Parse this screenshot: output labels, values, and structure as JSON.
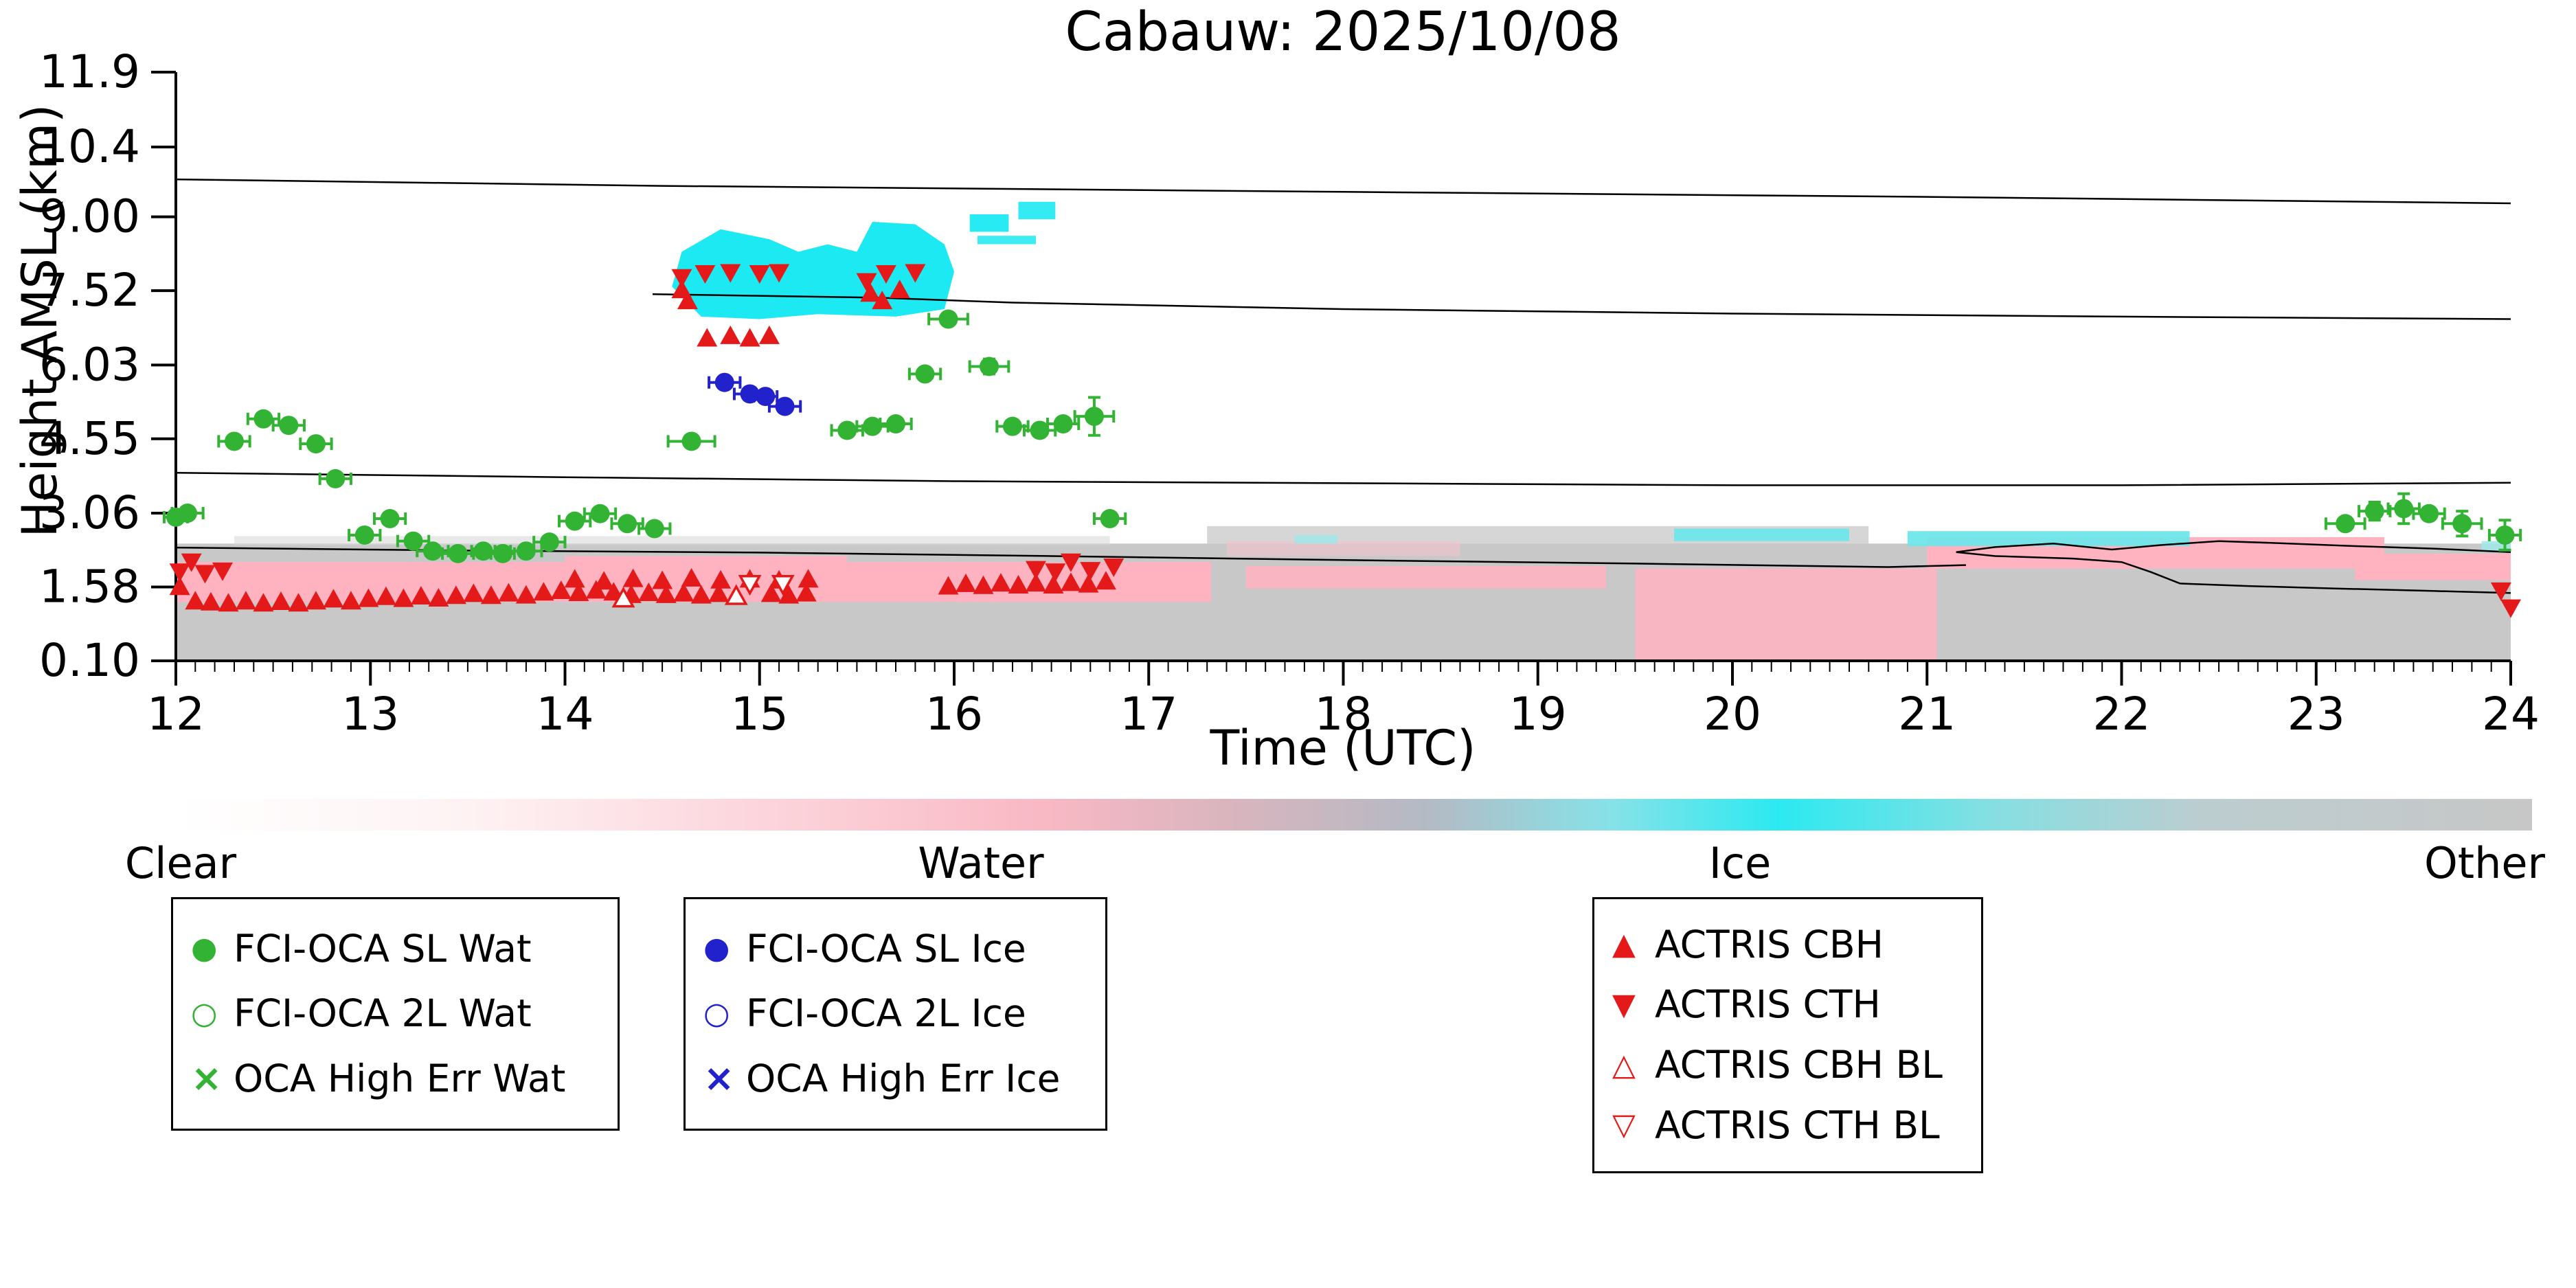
{
  "header": {
    "title": "Cabauw: 2025/10/08"
  },
  "colors": {
    "water_green": "#33b333",
    "ice_blue": "#2222cc",
    "actris_red": "#e41a1a",
    "bg_gray": "#c8c8c8",
    "bg_pink": "#ffb3c1",
    "bg_cyan": "#1ce9f2"
  },
  "colorbar": {
    "stops": [
      "#ffffff 0%",
      "#fef3f4 12%",
      "#fbc9d2 30%",
      "#f8b8c4 37%",
      "#d8b5be 45%",
      "#b4bac4 53%",
      "#86e2e8 61%",
      "#2ce9f1 68%",
      "#85dfe2 77%",
      "#bccdd0 86%",
      "#c7c7c7 100%"
    ],
    "labels": {
      "clear": "Clear",
      "water": "Water",
      "ice": "Ice",
      "other": "Other"
    }
  },
  "legend": {
    "boxes": [
      {
        "name": "water",
        "items": [
          {
            "glyph": "●",
            "color": "#33b333",
            "label": "FCI-OCA SL Wat"
          },
          {
            "glyph": "○",
            "color": "#33b333",
            "label": "FCI-OCA 2L Wat"
          },
          {
            "glyph": "×",
            "color": "#33b333",
            "label": "OCA High Err Wat"
          }
        ]
      },
      {
        "name": "ice",
        "items": [
          {
            "glyph": "●",
            "color": "#2222cc",
            "label": "FCI-OCA SL Ice"
          },
          {
            "glyph": "○",
            "color": "#2222cc",
            "label": "FCI-OCA 2L Ice"
          },
          {
            "glyph": "×",
            "color": "#2222cc",
            "label": "OCA High Err Ice"
          }
        ]
      },
      {
        "name": "actris",
        "items": [
          {
            "glyph": "▲",
            "color": "#e41a1a",
            "label": "ACTRIS CBH"
          },
          {
            "glyph": "▼",
            "color": "#e41a1a",
            "label": "ACTRIS CTH"
          },
          {
            "glyph": "△",
            "color": "#e41a1a",
            "label": "ACTRIS CBH BL"
          },
          {
            "glyph": "▽",
            "color": "#e41a1a",
            "label": "ACTRIS CTH BL"
          }
        ]
      }
    ]
  },
  "chart_data": {
    "type": "scatter",
    "title": "Cabauw: 2025/10/08",
    "xlabel": "Time (UTC)",
    "ylabel": "Height AMSL (km)",
    "xlim": [
      12,
      24
    ],
    "ylim": [
      0.1,
      11.9
    ],
    "xticks": [
      "12",
      "13",
      "14",
      "15",
      "16",
      "17",
      "18",
      "19",
      "20",
      "21",
      "22",
      "23",
      "24"
    ],
    "yticks": [
      "0.10",
      "1.58",
      "3.06",
      "4.55",
      "6.03",
      "7.52",
      "9.00",
      "10.4",
      "11.9"
    ],
    "minor_tick_step": 0.1,
    "background_regions": [
      {
        "rect": [
          12,
          24,
          0.1,
          2.45
        ],
        "color": "#c8c8c8",
        "opacity": 1,
        "name": "other-gray-base"
      },
      {
        "rect": [
          12.3,
          16.8,
          2.42,
          2.6
        ],
        "color": "#d9d9d9",
        "opacity": 0.6,
        "name": "gray-speckle-band"
      },
      {
        "rect": [
          17.3,
          20.7,
          2.4,
          2.8
        ],
        "color": "#c8c8c8",
        "opacity": 0.75,
        "name": "gray-bump"
      },
      {
        "rect": [
          12,
          17.32,
          1.28,
          2.08
        ],
        "color": "#ffb3c1",
        "opacity": 1,
        "name": "water-band-left"
      },
      {
        "rect": [
          14.0,
          15.45,
          1.5,
          2.2
        ],
        "color": "#ffb3c1",
        "opacity": 1,
        "name": "water-band-mid"
      },
      {
        "rect": [
          17.4,
          18.6,
          2.2,
          2.5
        ],
        "color": "#f4c3cd",
        "opacity": 0.6,
        "name": "water-speckle"
      },
      {
        "rect": [
          17.5,
          19.35,
          1.55,
          2.0
        ],
        "color": "#ffb3c1",
        "opacity": 0.9,
        "name": "water-band-right"
      },
      {
        "rect": [
          19.5,
          21.05,
          0.12,
          1.95
        ],
        "color": "#ffb3c1",
        "opacity": 0.85,
        "name": "water-columns"
      },
      {
        "rect": [
          21.0,
          23.35,
          1.95,
          2.58
        ],
        "color": "#ffb3c1",
        "opacity": 1,
        "name": "water-band-late"
      },
      {
        "rect": [
          23.2,
          24,
          1.72,
          2.25
        ],
        "color": "#ffb3c1",
        "opacity": 1,
        "name": "water-band-end"
      },
      {
        "poly": [
          [
            14.55,
            7.6
          ],
          [
            14.6,
            8.3
          ],
          [
            14.8,
            8.75
          ],
          [
            15.05,
            8.55
          ],
          [
            15.2,
            8.3
          ],
          [
            15.35,
            8.45
          ],
          [
            15.5,
            8.3
          ],
          [
            15.58,
            8.9
          ],
          [
            15.8,
            8.85
          ],
          [
            15.95,
            8.45
          ],
          [
            16.0,
            7.9
          ],
          [
            15.95,
            7.15
          ],
          [
            15.7,
            7.0
          ],
          [
            15.3,
            7.05
          ],
          [
            15.0,
            6.95
          ],
          [
            14.7,
            7.0
          ]
        ],
        "color": "#1ce9f2",
        "opacity": 1,
        "name": "ice-cloud-main"
      },
      {
        "rect": [
          16.08,
          16.28,
          8.7,
          9.05
        ],
        "color": "#1ce9f2",
        "opacity": 0.95,
        "name": "ice-wisp-1"
      },
      {
        "rect": [
          16.33,
          16.52,
          8.95,
          9.3
        ],
        "color": "#1ce9f2",
        "opacity": 0.9,
        "name": "ice-wisp-2"
      },
      {
        "rect": [
          16.12,
          16.42,
          8.45,
          8.62
        ],
        "color": "#1ce9f2",
        "opacity": 0.85,
        "name": "ice-wisp-3"
      },
      {
        "rect": [
          19.7,
          20.6,
          2.5,
          2.75
        ],
        "color": "#6fe6ea",
        "opacity": 0.95,
        "name": "ice-low-band-1"
      },
      {
        "rect": [
          20.9,
          22.35,
          2.4,
          2.7
        ],
        "color": "#6fe6ea",
        "opacity": 0.95,
        "name": "ice-low-band-2"
      },
      {
        "rect": [
          17.75,
          17.97,
          2.45,
          2.62
        ],
        "color": "#9fe8ea",
        "opacity": 0.85,
        "name": "ice-low-patch-1"
      },
      {
        "rect": [
          23.85,
          24,
          2.28,
          2.5
        ],
        "color": "#9fe8ea",
        "opacity": 0.85,
        "name": "ice-low-patch-2"
      }
    ],
    "contours": [
      [
        [
          12,
          9.75
        ],
        [
          14.5,
          9.62
        ],
        [
          18,
          9.5
        ],
        [
          21,
          9.4
        ],
        [
          24,
          9.27
        ]
      ],
      [
        [
          14.45,
          7.45
        ],
        [
          15.6,
          7.38
        ],
        [
          16.3,
          7.28
        ],
        [
          18,
          7.15
        ],
        [
          20,
          7.06
        ],
        [
          22,
          7.0
        ],
        [
          24,
          6.95
        ]
      ],
      [
        [
          12,
          3.87
        ],
        [
          14,
          3.78
        ],
        [
          16,
          3.7
        ],
        [
          18,
          3.66
        ],
        [
          20,
          3.62
        ],
        [
          22,
          3.62
        ],
        [
          24,
          3.67
        ]
      ],
      [
        [
          12,
          2.37
        ],
        [
          13.5,
          2.31
        ],
        [
          15,
          2.27
        ],
        [
          16.5,
          2.2
        ],
        [
          18,
          2.12
        ],
        [
          19.5,
          2.05
        ],
        [
          20.8,
          1.98
        ],
        [
          21.2,
          2.02
        ]
      ],
      [
        [
          24,
          2.28
        ],
        [
          23.6,
          2.35
        ],
        [
          23.2,
          2.4
        ],
        [
          22.8,
          2.46
        ],
        [
          22.5,
          2.5
        ],
        [
          22.2,
          2.42
        ],
        [
          21.95,
          2.33
        ],
        [
          21.65,
          2.45
        ],
        [
          21.35,
          2.38
        ],
        [
          21.15,
          2.28
        ],
        [
          21.35,
          2.2
        ],
        [
          21.75,
          2.15
        ],
        [
          22.0,
          2.08
        ],
        [
          22.15,
          1.88
        ],
        [
          22.3,
          1.65
        ],
        [
          22.65,
          1.6
        ],
        [
          23.1,
          1.55
        ],
        [
          23.6,
          1.5
        ],
        [
          24,
          1.46
        ]
      ]
    ],
    "series": [
      {
        "name": "actris-cbh",
        "label": "ACTRIS CBH",
        "marker": "triangle-up",
        "color": "#e41a1a",
        "points": [
          [
            12.02,
            1.57
          ],
          [
            12.1,
            1.28
          ],
          [
            12.18,
            1.26
          ],
          [
            12.27,
            1.24
          ],
          [
            12.36,
            1.28
          ],
          [
            12.45,
            1.24
          ],
          [
            12.54,
            1.27
          ],
          [
            12.63,
            1.24
          ],
          [
            12.72,
            1.28
          ],
          [
            12.81,
            1.32
          ],
          [
            12.9,
            1.28
          ],
          [
            12.99,
            1.33
          ],
          [
            13.08,
            1.37
          ],
          [
            13.17,
            1.33
          ],
          [
            13.26,
            1.38
          ],
          [
            13.35,
            1.34
          ],
          [
            13.44,
            1.39
          ],
          [
            13.53,
            1.43
          ],
          [
            13.62,
            1.39
          ],
          [
            13.71,
            1.44
          ],
          [
            13.8,
            1.4
          ],
          [
            13.89,
            1.46
          ],
          [
            13.98,
            1.49
          ],
          [
            14.07,
            1.45
          ],
          [
            14.16,
            1.5
          ],
          [
            14.25,
            1.46
          ],
          [
            14.34,
            1.41
          ],
          [
            14.43,
            1.45
          ],
          [
            14.52,
            1.41
          ],
          [
            14.61,
            1.44
          ],
          [
            14.7,
            1.4
          ],
          [
            14.79,
            1.43
          ],
          [
            15.06,
            1.43
          ],
          [
            15.15,
            1.4
          ],
          [
            15.24,
            1.44
          ],
          [
            14.05,
            1.72
          ],
          [
            14.2,
            1.68
          ],
          [
            14.35,
            1.73
          ],
          [
            14.5,
            1.69
          ],
          [
            14.65,
            1.74
          ],
          [
            14.8,
            1.7
          ],
          [
            14.95,
            1.72
          ],
          [
            15.1,
            1.7
          ],
          [
            15.25,
            1.72
          ],
          [
            15.97,
            1.58
          ],
          [
            16.06,
            1.63
          ],
          [
            16.15,
            1.59
          ],
          [
            16.24,
            1.64
          ],
          [
            16.33,
            1.6
          ],
          [
            16.42,
            1.64
          ],
          [
            16.51,
            1.6
          ],
          [
            16.6,
            1.65
          ],
          [
            16.69,
            1.62
          ],
          [
            16.78,
            1.68
          ],
          [
            14.6,
            7.52
          ],
          [
            14.63,
            7.3
          ],
          [
            14.73,
            6.55
          ],
          [
            14.85,
            6.6
          ],
          [
            14.95,
            6.55
          ],
          [
            15.05,
            6.6
          ],
          [
            15.57,
            7.45
          ],
          [
            15.63,
            7.3
          ],
          [
            15.72,
            7.52
          ]
        ]
      },
      {
        "name": "actris-cth",
        "label": "ACTRIS CTH",
        "marker": "triangle-down",
        "color": "#e41a1a",
        "points": [
          [
            12.02,
            1.9
          ],
          [
            12.08,
            2.1
          ],
          [
            12.15,
            1.87
          ],
          [
            12.24,
            1.92
          ],
          [
            16.42,
            1.95
          ],
          [
            16.52,
            1.9
          ],
          [
            16.6,
            2.1
          ],
          [
            16.7,
            1.93
          ],
          [
            16.82,
            2.0
          ],
          [
            14.6,
            7.8
          ],
          [
            14.72,
            7.88
          ],
          [
            14.85,
            7.9
          ],
          [
            15.0,
            7.88
          ],
          [
            15.1,
            7.9
          ],
          [
            15.55,
            7.72
          ],
          [
            15.65,
            7.88
          ],
          [
            15.8,
            7.9
          ],
          [
            23.95,
            1.52
          ],
          [
            24.0,
            1.18
          ]
        ]
      },
      {
        "name": "actris-cbh-bl",
        "label": "ACTRIS CBH BL",
        "marker": "triangle-up-open",
        "color": "#e41a1a",
        "points": [
          [
            14.3,
            1.33
          ],
          [
            14.88,
            1.38
          ]
        ]
      },
      {
        "name": "actris-cth-bl",
        "label": "ACTRIS CTH BL",
        "marker": "triangle-down-open",
        "color": "#e41a1a",
        "points": [
          [
            14.95,
            1.66
          ],
          [
            15.12,
            1.66
          ]
        ]
      },
      {
        "name": "fci-oca-sl-wat",
        "label": "FCI-OCA SL Wat",
        "marker": "circle",
        "color": "#33b333",
        "points": [
          [
            12.0,
            2.98,
            0.06
          ],
          [
            12.06,
            3.06,
            0.08
          ],
          [
            12.3,
            4.5,
            0.08
          ],
          [
            12.45,
            4.95,
            0.08
          ],
          [
            12.58,
            4.82,
            0.08
          ],
          [
            12.72,
            4.45,
            0.08
          ],
          [
            12.82,
            3.75,
            0.08
          ],
          [
            12.97,
            2.62,
            0.08
          ],
          [
            13.1,
            2.95,
            0.08
          ],
          [
            13.22,
            2.5,
            0.08
          ],
          [
            13.32,
            2.3,
            0.08
          ],
          [
            13.45,
            2.25,
            0.08
          ],
          [
            13.58,
            2.3,
            0.06
          ],
          [
            13.68,
            2.25,
            0.06
          ],
          [
            13.8,
            2.3,
            0.08
          ],
          [
            13.92,
            2.48,
            0.08
          ],
          [
            14.05,
            2.9,
            0.08
          ],
          [
            14.18,
            3.05,
            0.08
          ],
          [
            14.32,
            2.85,
            0.08
          ],
          [
            14.46,
            2.75,
            0.08
          ],
          [
            14.65,
            4.5,
            0.12
          ],
          [
            15.45,
            4.72,
            0.08
          ],
          [
            15.58,
            4.8,
            0.08
          ],
          [
            15.7,
            4.85,
            0.08
          ],
          [
            15.85,
            5.85,
            0.08
          ],
          [
            15.97,
            6.95,
            0.1
          ],
          [
            16.18,
            6.0,
            0.1,
            0.15
          ],
          [
            16.3,
            4.8,
            0.08
          ],
          [
            16.44,
            4.72,
            0.08
          ],
          [
            16.56,
            4.85,
            0.08
          ],
          [
            16.72,
            5.0,
            0.1,
            0.38
          ],
          [
            16.8,
            2.95,
            0.08
          ],
          [
            23.15,
            2.85,
            0.1
          ],
          [
            23.3,
            3.1,
            0.08,
            0.18
          ],
          [
            23.45,
            3.15,
            0.08,
            0.3
          ],
          [
            23.58,
            3.05,
            0.08
          ],
          [
            23.75,
            2.85,
            0.1,
            0.25
          ],
          [
            23.97,
            2.62,
            0.08,
            0.3
          ]
        ]
      },
      {
        "name": "fci-oca-2l-wat",
        "label": "FCI-OCA 2L Wat",
        "marker": "circle-open",
        "color": "#33b333",
        "points": []
      },
      {
        "name": "oca-high-err-wat",
        "label": "OCA High Err Wat",
        "marker": "x",
        "color": "#33b333",
        "points": []
      },
      {
        "name": "fci-oca-sl-ice",
        "label": "FCI-OCA SL Ice",
        "marker": "circle",
        "color": "#2222cc",
        "points": [
          [
            14.82,
            5.68,
            0.08
          ],
          [
            14.95,
            5.45,
            0.08
          ],
          [
            15.03,
            5.4,
            0.06
          ],
          [
            15.13,
            5.2,
            0.08
          ]
        ]
      },
      {
        "name": "fci-oca-2l-ice",
        "label": "FCI-OCA 2L Ice",
        "marker": "circle-open",
        "color": "#2222cc",
        "points": []
      },
      {
        "name": "oca-high-err-ice",
        "label": "OCA High Err Ice",
        "marker": "x",
        "color": "#2222cc",
        "points": []
      }
    ]
  }
}
